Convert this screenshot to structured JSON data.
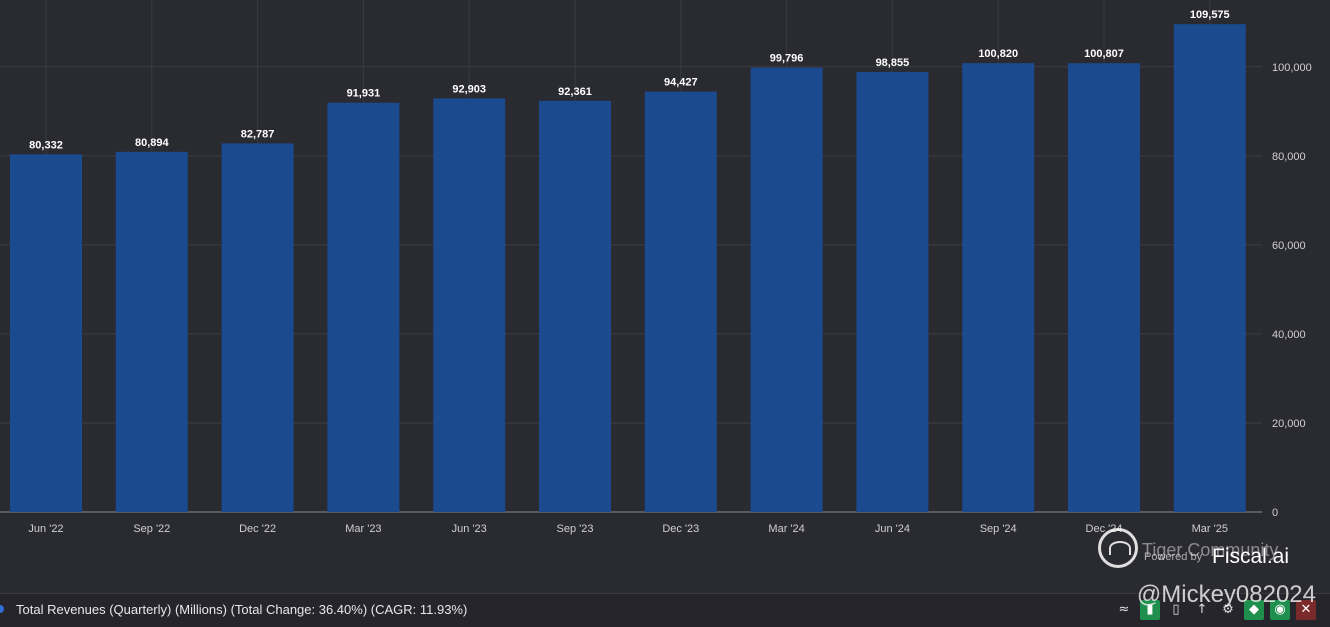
{
  "chart_data": {
    "type": "bar",
    "categories": [
      "Jun '22",
      "Sep '22",
      "Dec '22",
      "Mar '23",
      "Jun '23",
      "Sep '23",
      "Dec '23",
      "Mar '24",
      "Jun '24",
      "Sep '24",
      "Dec '24",
      "Mar '25"
    ],
    "values": [
      80332,
      80894,
      82787,
      91931,
      92903,
      92361,
      94427,
      99796,
      98855,
      100820,
      100807,
      109575
    ],
    "value_labels": [
      "80,332",
      "80,894",
      "82,787",
      "91,931",
      "92,903",
      "92,361",
      "94,427",
      "99,796",
      "98,855",
      "100,820",
      "100,807",
      "109,575"
    ],
    "y_ticks": [
      0,
      20000,
      40000,
      60000,
      80000,
      100000
    ],
    "y_tick_labels": [
      "0",
      "20,000",
      "40,000",
      "60,000",
      "80,000",
      "100,000"
    ],
    "ylim": [
      0,
      115000
    ],
    "y_axis_position": "right",
    "grid": true,
    "bar_color": "#1b4a8f"
  },
  "legend": {
    "text": "Total Revenues (Quarterly) (Millions) (Total Change: 36.40%) (CAGR: 11.93%)",
    "color": "#2f6fd6"
  },
  "watermark": {
    "tiger": "Tiger Community",
    "powered": "Powered by",
    "brand": "Fiscal.ai",
    "user": "@Mickey082024"
  },
  "toolbar": {
    "icons": [
      "line-chart-icon",
      "bar-chart-icon",
      "stacked-bar-icon",
      "sort-icon",
      "gear-icon",
      "tag-icon",
      "eye-icon",
      "close-icon"
    ],
    "glyphs": [
      "≈",
      "▮",
      "▯",
      "↑",
      "⚙",
      "◆",
      "◉",
      "✕"
    ]
  }
}
